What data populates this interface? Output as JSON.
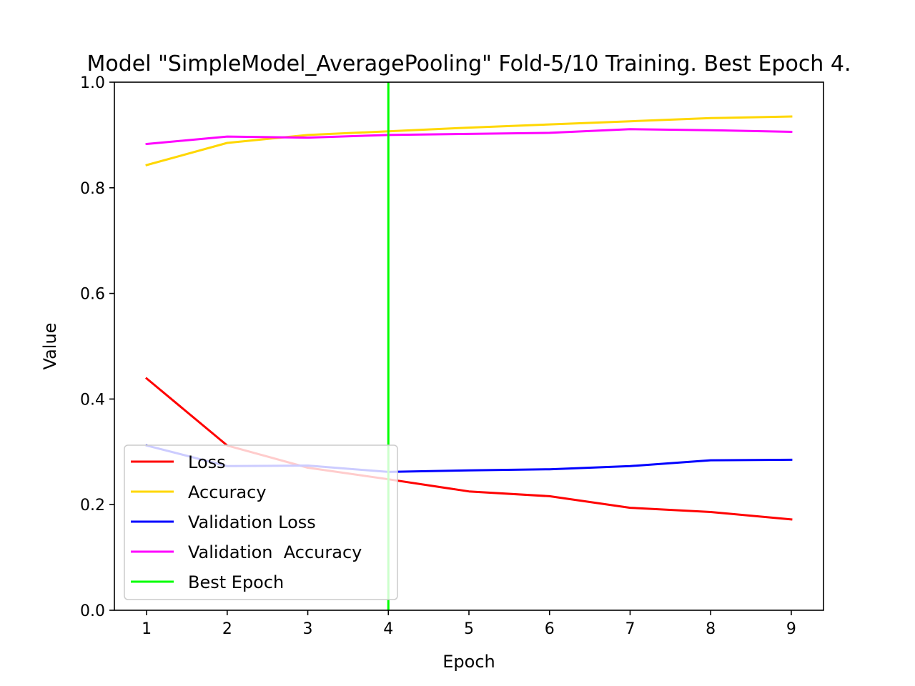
{
  "chart_data": {
    "type": "line",
    "title": "Model \"SimpleModel_AveragePooling\" Fold-5/10 Training. Best Epoch 4.",
    "xlabel": "Epoch",
    "ylabel": "Value",
    "x": [
      1,
      2,
      3,
      4,
      5,
      6,
      7,
      8,
      9
    ],
    "xlim": [
      0.6,
      9.4
    ],
    "ylim": [
      0,
      1
    ],
    "xticks": [
      "1",
      "2",
      "3",
      "4",
      "5",
      "6",
      "7",
      "8",
      "9"
    ],
    "yticks": [
      "0.0",
      "0.2",
      "0.4",
      "0.6",
      "0.8",
      "1.0"
    ],
    "grid": false,
    "legend_position": "lower-left",
    "series": [
      {
        "name": "Loss",
        "color": "#ff0000",
        "values": [
          0.439,
          0.312,
          0.27,
          0.248,
          0.225,
          0.216,
          0.194,
          0.186,
          0.172
        ]
      },
      {
        "name": "Accuracy",
        "color": "#ffd700",
        "values": [
          0.843,
          0.885,
          0.9,
          0.907,
          0.914,
          0.92,
          0.926,
          0.932,
          0.935
        ]
      },
      {
        "name": "Validation Loss",
        "color": "#0000ff",
        "values": [
          0.312,
          0.273,
          0.274,
          0.262,
          0.265,
          0.267,
          0.273,
          0.284,
          0.285
        ]
      },
      {
        "name": "Validation  Accuracy",
        "color": "#ff00ff",
        "values": [
          0.883,
          0.897,
          0.895,
          0.9,
          0.902,
          0.904,
          0.911,
          0.909,
          0.906
        ]
      }
    ],
    "best_epoch": {
      "name": "Best Epoch",
      "x": 4,
      "color": "#00ff00"
    }
  }
}
